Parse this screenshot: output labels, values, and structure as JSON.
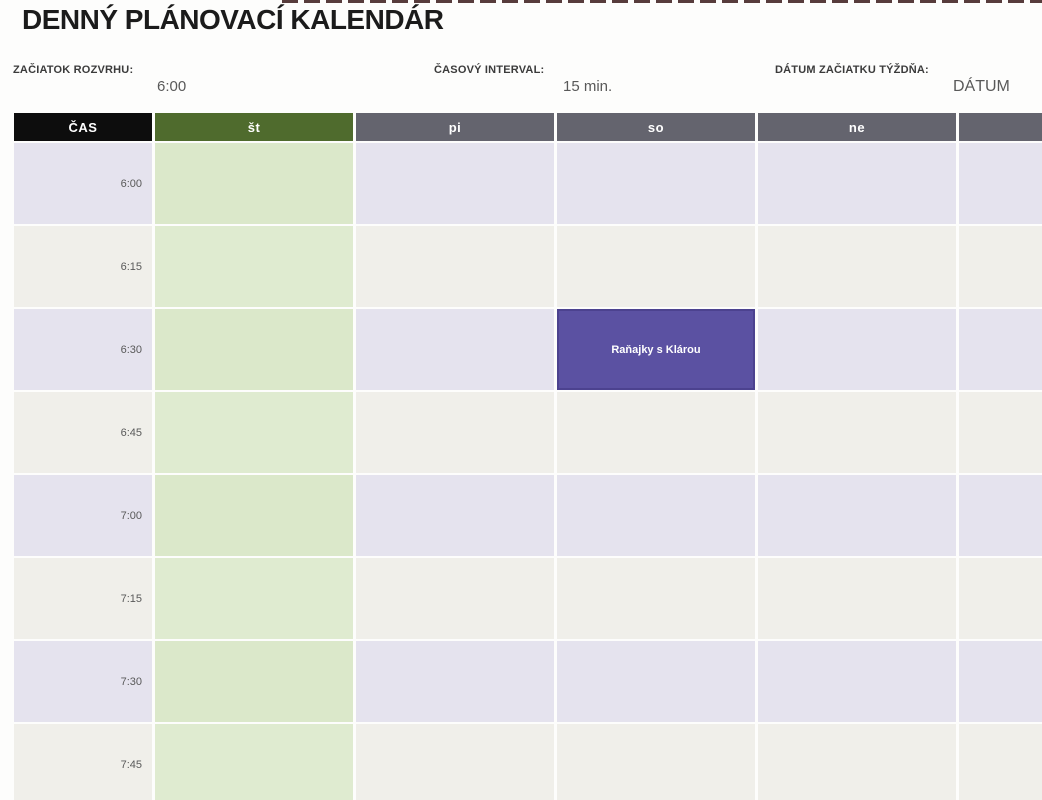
{
  "page": {
    "title": "DENNÝ PLÁNOVACÍ KALENDÁR"
  },
  "settings": {
    "schedule_start": {
      "label": "ZAČIATOK ROZVRHU:",
      "value": "6:00"
    },
    "time_interval": {
      "label": "ČASOVÝ INTERVAL:",
      "value": "15 min."
    },
    "week_start_date": {
      "label": "DÁTUM ZAČIATKU TÝŽDŇA:",
      "value": "DÁTUM"
    }
  },
  "calendar": {
    "time_header": "ČAS",
    "day_headers": [
      {
        "key": "st",
        "label": "št",
        "highlight": true
      },
      {
        "key": "pi",
        "label": "pi",
        "highlight": false
      },
      {
        "key": "so",
        "label": "so",
        "highlight": false
      },
      {
        "key": "ne",
        "label": "ne",
        "highlight": false
      }
    ],
    "extra_column": {
      "label": ""
    },
    "times": [
      "6:00",
      "6:15",
      "6:30",
      "6:45",
      "7:00",
      "7:15",
      "7:30",
      "7:45"
    ],
    "events": [
      {
        "title": "Raňajky s Klárou",
        "day": "so",
        "time": "6:30"
      }
    ],
    "colors": {
      "time_header_bg": "#0d0d0d",
      "day_header_bg": "#64646e",
      "highlight_header_bg": "#4f6b2d",
      "highlight_cell_bg": "#dbe8ca",
      "row_even_bg": "#e5e3ee",
      "row_odd_bg": "#f0efea",
      "event_bg": "#5b51a2",
      "event_border": "#4c428f",
      "value_text": "#595959"
    }
  }
}
